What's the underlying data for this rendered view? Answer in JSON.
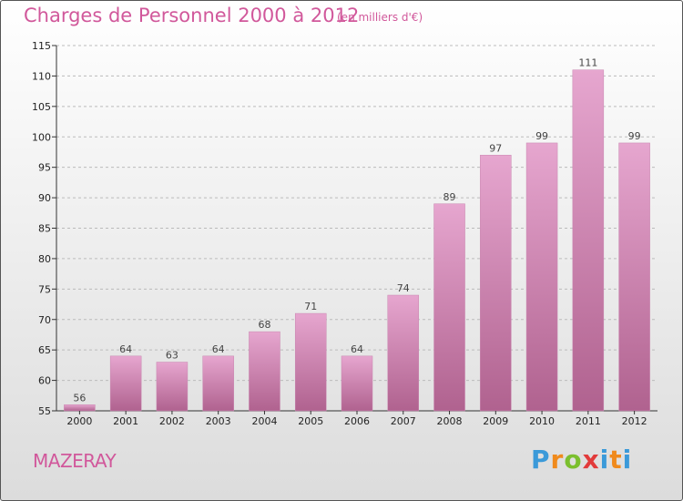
{
  "title": "Charges de Personnel 2000 à 2012",
  "subtitle": "(en milliers d'€)",
  "commune": "MAZERAY",
  "logo": {
    "p": "P",
    "r": "r",
    "o": "o",
    "x": "x",
    "i": "i",
    "t": "t",
    "i2": "i"
  },
  "colors": {
    "bar": "#d78ab9",
    "bar_top": "#e6a6cf",
    "bar_bottom": "#b0628f",
    "title": "#d1589b"
  },
  "chart_data": {
    "type": "bar",
    "categories": [
      "2000",
      "2001",
      "2002",
      "2003",
      "2004",
      "2005",
      "2006",
      "2007",
      "2008",
      "2009",
      "2010",
      "2011",
      "2012"
    ],
    "values": [
      56,
      64,
      63,
      64,
      68,
      71,
      64,
      74,
      89,
      97,
      99,
      111,
      99
    ],
    "title": "Charges de Personnel 2000 à 2012",
    "subtitle": "(en milliers d'€)",
    "ylim": [
      55,
      115
    ],
    "yticks": [
      55,
      60,
      65,
      70,
      75,
      80,
      85,
      90,
      95,
      100,
      105,
      110,
      115
    ],
    "grid": true
  }
}
